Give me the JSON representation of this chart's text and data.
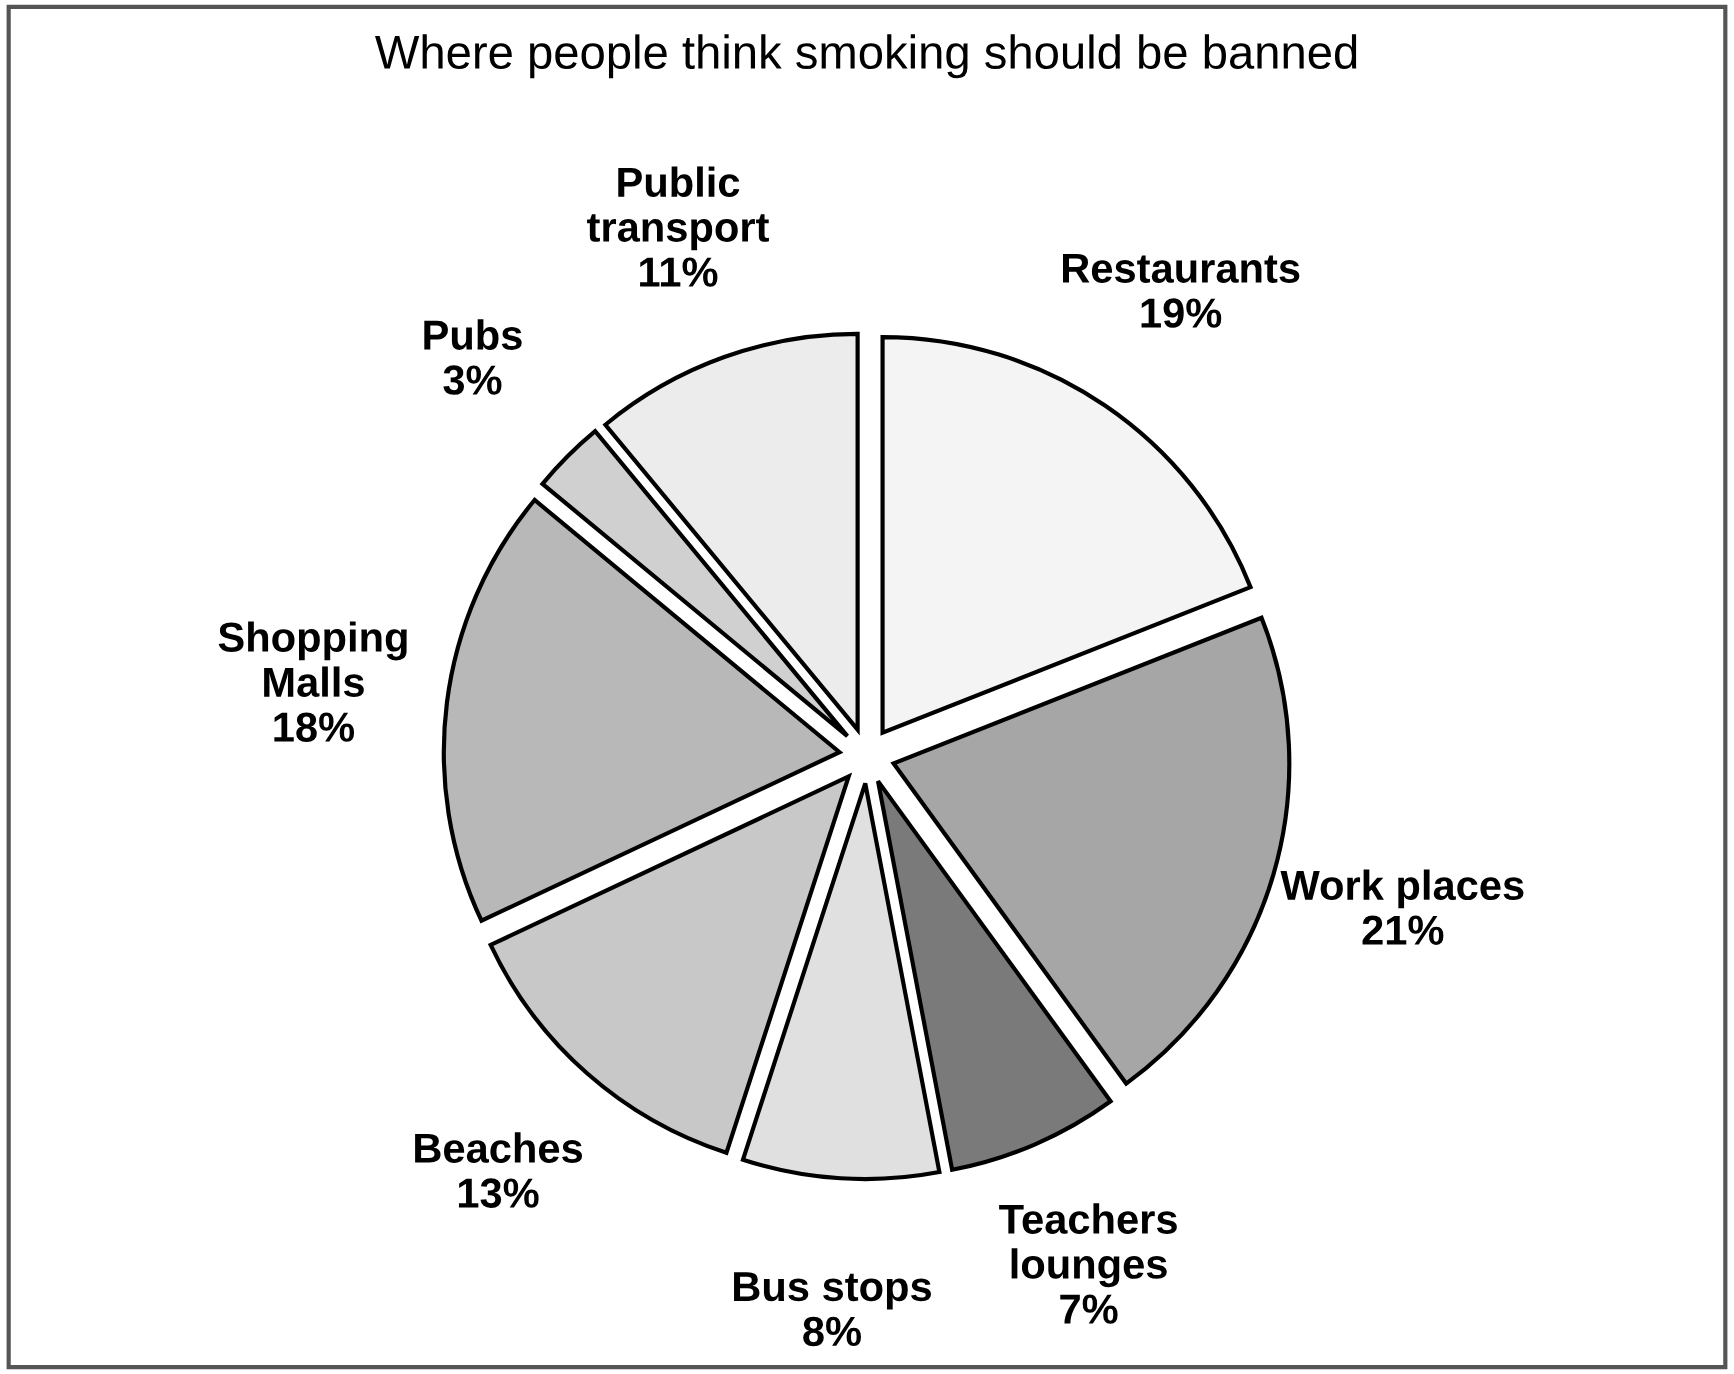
{
  "chart_data": {
    "type": "pie",
    "title": "Where people think smoking should be banned",
    "categories": [
      "Restaurants",
      "Work places",
      "Teachers\nlounges",
      "Bus stops",
      "Beaches",
      "Shopping\nMalls",
      "Pubs",
      "Public\ntransport"
    ],
    "values": [
      19,
      21,
      7,
      8,
      13,
      18,
      3,
      11
    ],
    "value_labels": [
      "19%",
      "21%",
      "7%",
      "8%",
      "13%",
      "18%",
      "3%",
      "11%"
    ],
    "colors": [
      "#f4f4f4",
      "#a6a6a6",
      "#7a7a7a",
      "#e0e0e0",
      "#c8c8c8",
      "#b8b8b8",
      "#d0d0d0",
      "#ececec"
    ],
    "legend": false
  }
}
